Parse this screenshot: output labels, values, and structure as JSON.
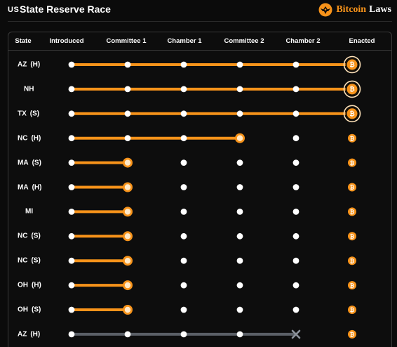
{
  "header": {
    "flag": "US",
    "title": "State Reserve Race",
    "brand_bitcoin": "Bitcoin",
    "brand_laws": "Laws"
  },
  "colors": {
    "accent": "#f7931a",
    "failed": "#5a5f66",
    "dot": "#ffffff",
    "background": "#0b0b0b"
  },
  "chart_data": {
    "type": "table",
    "columns": [
      "State",
      "Introduced",
      "Committee 1",
      "Chamber 1",
      "Committee 2",
      "Chamber 2",
      "Enacted"
    ],
    "stages": [
      "Introduced",
      "Committee 1",
      "Chamber 1",
      "Committee 2",
      "Chamber 2",
      "Enacted"
    ],
    "rows": [
      {
        "state": "AZ",
        "chamber": "(H)",
        "progress": 6,
        "status": "enacted"
      },
      {
        "state": "NH",
        "chamber": "",
        "progress": 6,
        "status": "enacted"
      },
      {
        "state": "TX",
        "chamber": "(S)",
        "progress": 6,
        "status": "enacted"
      },
      {
        "state": "NC",
        "chamber": "(H)",
        "progress": 4,
        "status": "active"
      },
      {
        "state": "MA",
        "chamber": "(S)",
        "progress": 2,
        "status": "active"
      },
      {
        "state": "MA",
        "chamber": "(H)",
        "progress": 2,
        "status": "active"
      },
      {
        "state": "MI",
        "chamber": "",
        "progress": 2,
        "status": "active"
      },
      {
        "state": "NC",
        "chamber": "(S)",
        "progress": 2,
        "status": "active"
      },
      {
        "state": "NC",
        "chamber": "(S)",
        "progress": 2,
        "status": "active"
      },
      {
        "state": "OH",
        "chamber": "(H)",
        "progress": 2,
        "status": "active"
      },
      {
        "state": "OH",
        "chamber": "(S)",
        "progress": 2,
        "status": "active"
      },
      {
        "state": "AZ",
        "chamber": "(H)",
        "progress": 5,
        "status": "failed"
      }
    ]
  }
}
